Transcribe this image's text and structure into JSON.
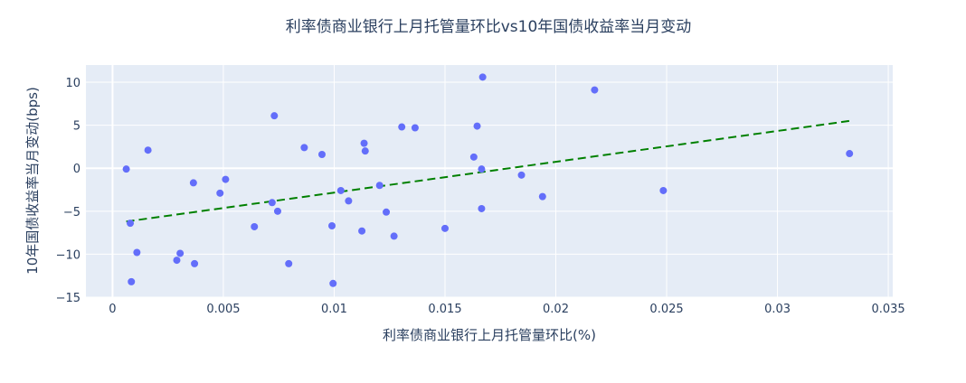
{
  "chart_data": {
    "type": "scatter",
    "title": "利率债商业银行上月托管量环比vs10年国债收益率当月变动",
    "xlabel": "利率债商业银行上月托管量环比(%)",
    "ylabel": "10年国债收益率当月变动(bps)",
    "xlim": [
      -0.0012,
      0.0352
    ],
    "ylim": [
      -15.0,
      12.0
    ],
    "xticks": [
      0,
      0.005,
      0.01,
      0.015,
      0.02,
      0.025,
      0.03,
      0.035
    ],
    "xtick_labels": [
      "0",
      "0.005",
      "0.01",
      "0.015",
      "0.02",
      "0.025",
      "0.03",
      "0.035"
    ],
    "yticks": [
      -15,
      -10,
      -5,
      0,
      5,
      10
    ],
    "ytick_labels": [
      "−15",
      "−10",
      "−5",
      "0",
      "5",
      "10"
    ],
    "grid": true,
    "colors": {
      "points": "#636efa",
      "trend": "#008000",
      "plot_bg": "#e5ecf6",
      "grid": "#ffffff"
    },
    "points": [
      {
        "x": 0.00062,
        "y": -0.1
      },
      {
        "x": 0.0008,
        "y": -6.4
      },
      {
        "x": 0.00085,
        "y": -13.2
      },
      {
        "x": 0.0011,
        "y": -9.8
      },
      {
        "x": 0.0016,
        "y": 2.1
      },
      {
        "x": 0.0029,
        "y": -10.7
      },
      {
        "x": 0.00305,
        "y": -9.9
      },
      {
        "x": 0.00365,
        "y": -1.7
      },
      {
        "x": 0.0037,
        "y": -11.1
      },
      {
        "x": 0.00485,
        "y": -2.9
      },
      {
        "x": 0.0051,
        "y": -1.3
      },
      {
        "x": 0.0064,
        "y": -6.8
      },
      {
        "x": 0.0072,
        "y": -4.0
      },
      {
        "x": 0.0073,
        "y": 6.1
      },
      {
        "x": 0.00745,
        "y": -5.0
      },
      {
        "x": 0.00795,
        "y": -11.1
      },
      {
        "x": 0.00865,
        "y": 2.4
      },
      {
        "x": 0.00945,
        "y": 1.6
      },
      {
        "x": 0.0099,
        "y": -6.7
      },
      {
        "x": 0.00995,
        "y": -13.4
      },
      {
        "x": 0.0103,
        "y": -2.6
      },
      {
        "x": 0.01065,
        "y": -3.8
      },
      {
        "x": 0.01125,
        "y": -7.3
      },
      {
        "x": 0.01135,
        "y": 2.9
      },
      {
        "x": 0.0114,
        "y": 2.0
      },
      {
        "x": 0.01205,
        "y": -2.0
      },
      {
        "x": 0.01235,
        "y": -5.1
      },
      {
        "x": 0.0127,
        "y": -7.9
      },
      {
        "x": 0.01305,
        "y": 4.8
      },
      {
        "x": 0.01365,
        "y": 4.7
      },
      {
        "x": 0.015,
        "y": -7.0
      },
      {
        "x": 0.0163,
        "y": 1.3
      },
      {
        "x": 0.01645,
        "y": 4.9
      },
      {
        "x": 0.01665,
        "y": -0.1
      },
      {
        "x": 0.01665,
        "y": -4.7
      },
      {
        "x": 0.0167,
        "y": 10.6
      },
      {
        "x": 0.01845,
        "y": -0.8
      },
      {
        "x": 0.0194,
        "y": -3.3
      },
      {
        "x": 0.02175,
        "y": 9.1
      },
      {
        "x": 0.02485,
        "y": -2.6
      },
      {
        "x": 0.03325,
        "y": 1.7
      }
    ],
    "trendline": {
      "x": [
        0.00062,
        0.03325
      ],
      "y": [
        -6.2,
        5.5
      ],
      "style": "dashed"
    }
  }
}
